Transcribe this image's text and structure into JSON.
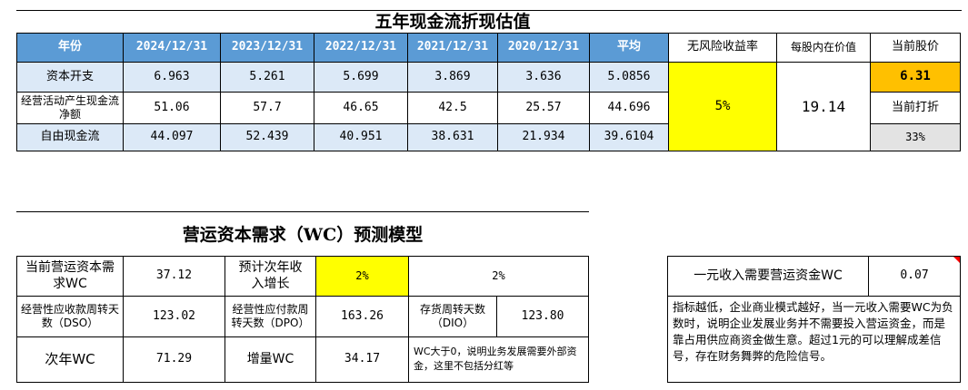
{
  "dcf": {
    "title": "五年现金流折现估值",
    "headers": [
      "年份",
      "2024/12/31",
      "2023/12/31",
      "2022/12/31",
      "2021/12/31",
      "2020/12/31",
      "平均"
    ],
    "rows": [
      {
        "label": "资本开支",
        "values": [
          "6.963",
          "5.261",
          "5.699",
          "3.869",
          "3.636",
          "5.0856"
        ]
      },
      {
        "label": "经营活动产生现金流净额",
        "values": [
          "51.06",
          "57.7",
          "46.65",
          "42.5",
          "25.57",
          "44.696"
        ]
      },
      {
        "label": "自由现金流",
        "values": [
          "44.097",
          "52.439",
          "40.951",
          "38.631",
          "21.934",
          "39.6104"
        ]
      }
    ],
    "risk_free_label": "无风险收益率",
    "risk_free_value": "5%",
    "intrinsic_label": "每股内在价值",
    "intrinsic_value": "19.14",
    "price_label": "当前股价",
    "price_value": "6.31",
    "discount_label": "当前打折",
    "discount_value": "33%"
  },
  "wc": {
    "title": "营运资本需求（WC）预测模型",
    "current_wc_label": "当前营运资本需求WC",
    "current_wc_value": "37.12",
    "growth_label": "预计次年收入增长",
    "growth_value": "2%",
    "growth_value2": "2%",
    "dso_label": "经营性应收款周转天数（DSO）",
    "dso_value": "123.02",
    "dpo_label": "经营性应付款周转天数（DPO）",
    "dpo_value": "163.26",
    "dio_label": "存货周转天数（DIO）",
    "dio_value": "123.80",
    "next_wc_label": "次年WC",
    "next_wc_value": "71.29",
    "increase_label": "增量WC",
    "increase_value": "34.17",
    "note_label": "WC大于0，说明业务发展需要外部资金，这里不包括分红等",
    "per_yuan_label": "一元收入需要营运资金WC",
    "per_yuan_value": "0.07",
    "explanation": "指标越低，企业商业模式越好，当一元收入需要WC为负数时，说明企业发展业务并不需要投入营运资金，而是靠占用供应商资金做生意。超过1元的可以理解成差信号，存在财务舞弊的危险信号。"
  },
  "colors": {
    "header_blue": "#5b9bd5",
    "row_blue": "#dce9f7",
    "yellow": "#ffff00",
    "orange": "#ffc000",
    "gray": "#e3e3e3",
    "comment_marker": "#ff0000"
  }
}
